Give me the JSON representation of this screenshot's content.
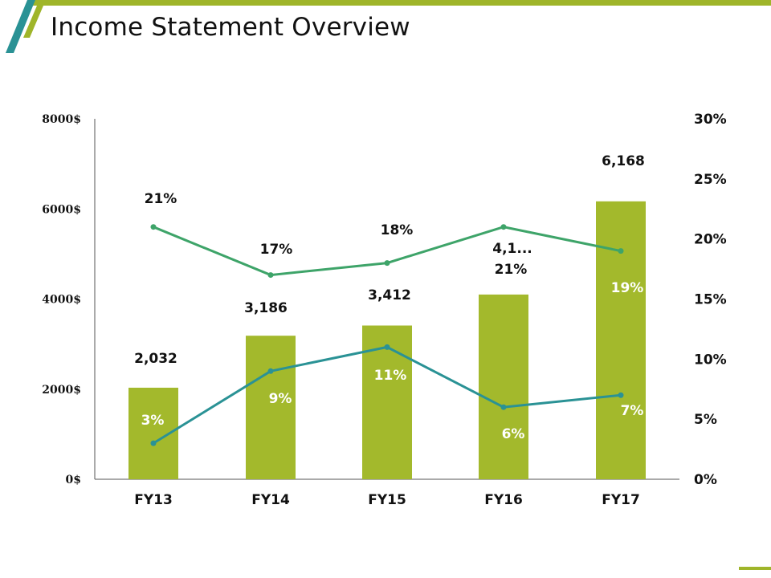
{
  "title": "Income Statement Overview",
  "colors": {
    "accent_green": "#9fb52a",
    "bar": "#a3b92c",
    "line_upper": "#3ea469",
    "line_lower": "#2a9295",
    "axis": "#555555",
    "teal_stripe": "#2a9295"
  },
  "chart_data": {
    "type": "bar",
    "categories": [
      "FY13",
      "FY14",
      "FY15",
      "FY16",
      "FY17"
    ],
    "bar_values": [
      2032,
      3186,
      3412,
      4100,
      6168
    ],
    "bar_labels": [
      "2,032",
      "3,186",
      "3,412",
      "4,1...",
      "6,168"
    ],
    "series": [
      {
        "type": "line",
        "axis": "right",
        "values": [
          21,
          17,
          18,
          21,
          19
        ],
        "labels": [
          "21%",
          "17%",
          "18%",
          "21%",
          "19%"
        ]
      },
      {
        "type": "line",
        "axis": "right",
        "values": [
          3,
          9,
          11,
          6,
          7
        ],
        "labels": [
          "3%",
          "9%",
          "11%",
          "6%",
          "7%"
        ]
      }
    ],
    "left_axis": {
      "ylim": [
        0,
        8000
      ],
      "ticks": [
        "0$",
        "2000$",
        "4000$",
        "6000$",
        "8000$"
      ]
    },
    "right_axis": {
      "ylim": [
        0,
        30
      ],
      "ticks": [
        "0%",
        "5%",
        "10%",
        "15%",
        "20%",
        "25%",
        "30%"
      ]
    },
    "grid": false,
    "legend": "none"
  }
}
